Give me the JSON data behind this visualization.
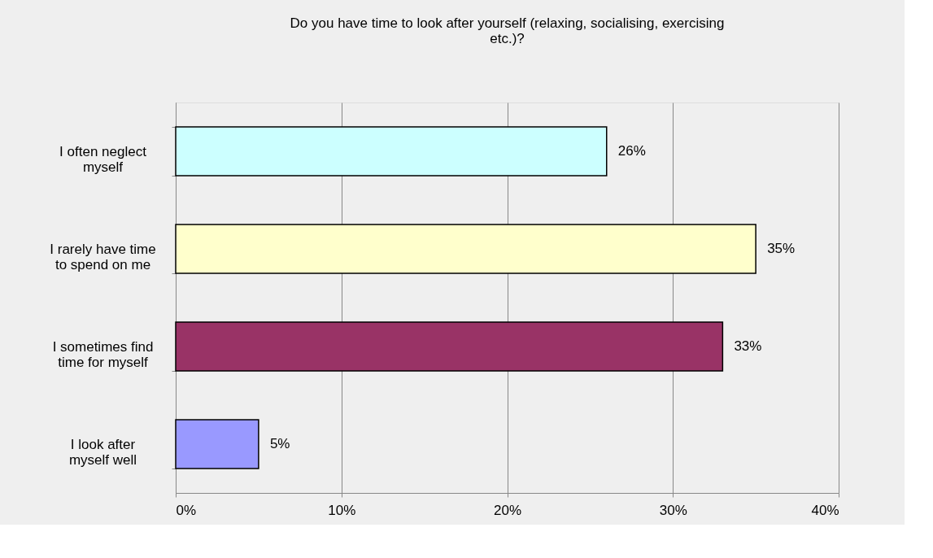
{
  "chart_data": {
    "type": "bar",
    "orientation": "horizontal",
    "title": "Do you have time to look after yourself (relaxing, socialising, exercising etc.)?",
    "categories": [
      "I often neglect myself",
      "I rarely have time to spend on me",
      "I sometimes find time for myself",
      "I look after myself well"
    ],
    "values": [
      26,
      35,
      33,
      5
    ],
    "colors": [
      "#ccffff",
      "#ffffcc",
      "#993366",
      "#9999ff"
    ],
    "xlim": [
      0,
      40
    ],
    "xticks": [
      {
        "value": 0,
        "label": "0%"
      },
      {
        "value": 10,
        "label": "10%"
      },
      {
        "value": 20,
        "label": "20%"
      },
      {
        "value": 30,
        "label": "30%"
      },
      {
        "value": 40,
        "label": "40%"
      }
    ],
    "value_labels": [
      "26%",
      "35%",
      "33%",
      "5%"
    ],
    "grid": "x"
  }
}
